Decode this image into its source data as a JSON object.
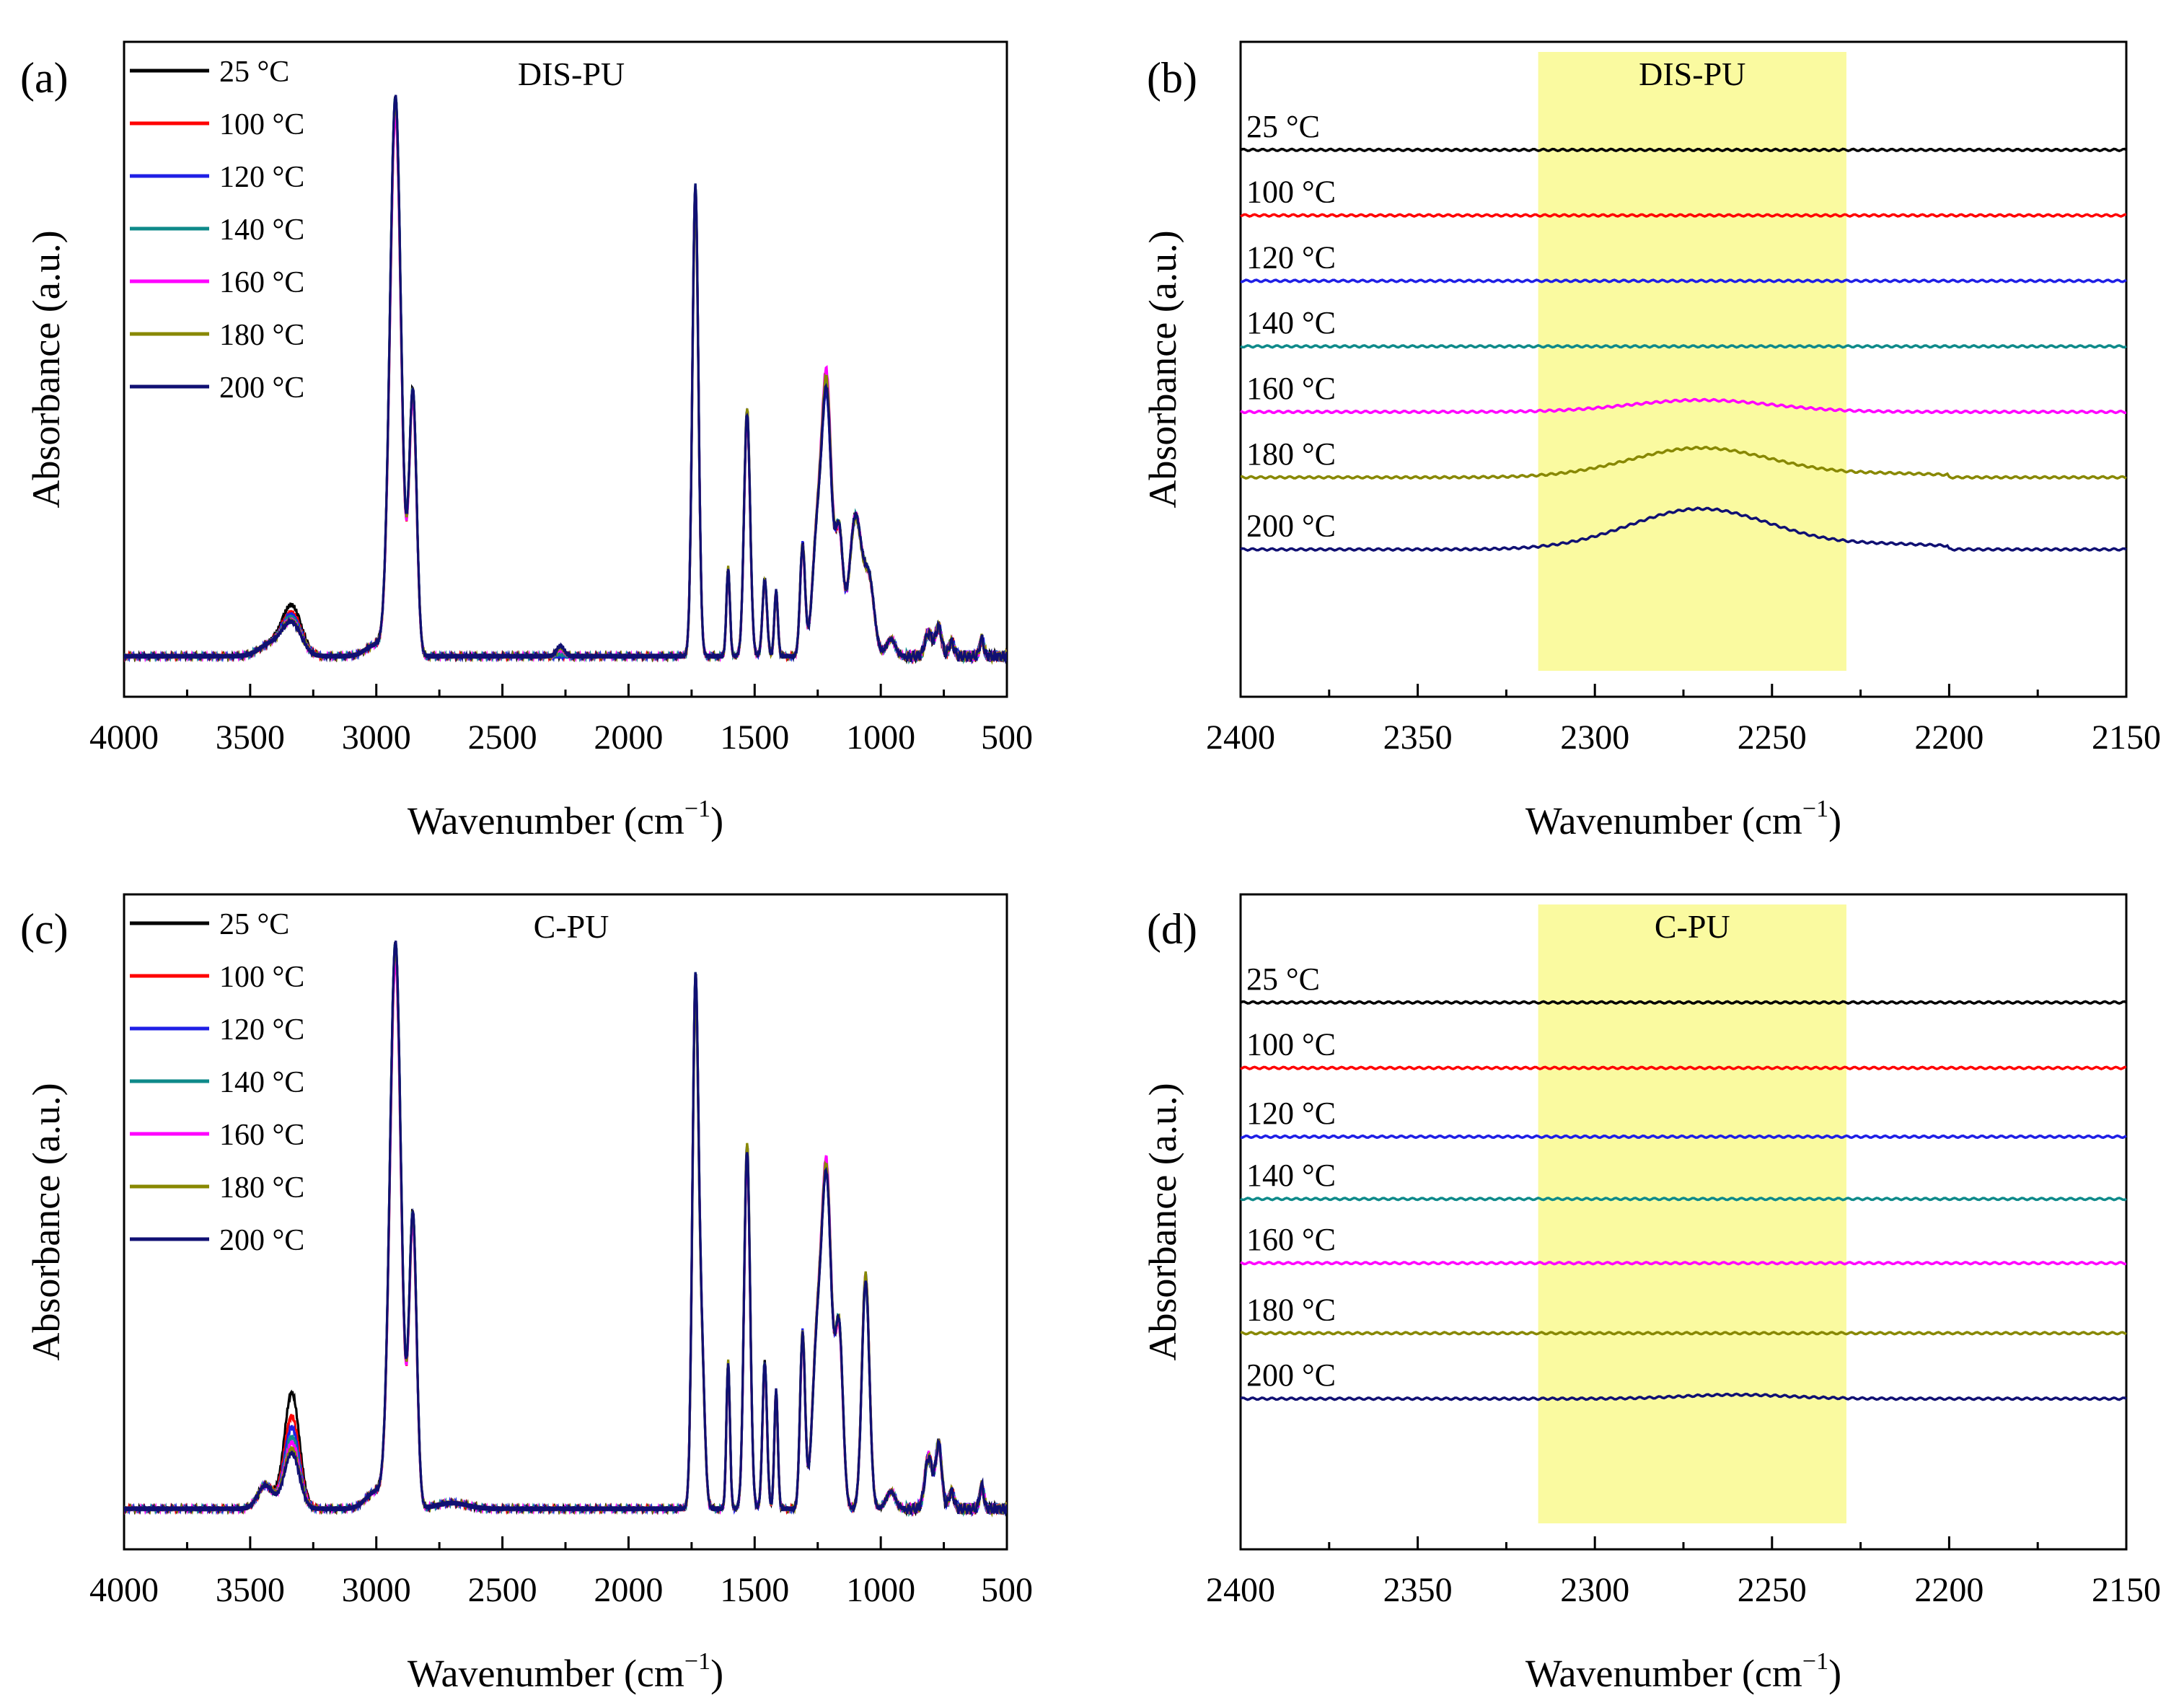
{
  "figure": {
    "units": {
      "degree": "°C",
      "superscript": "−1"
    },
    "colors": {
      "25": "#000000",
      "100": "#ff0000",
      "120": "#1f1fe6",
      "140": "#0e8a8a",
      "160": "#ff00ff",
      "180": "#888800",
      "200": "#101073",
      "highlight": "#fafaa0",
      "frame": "#000000"
    }
  },
  "chart_data": [
    {
      "panel": "(a)",
      "type": "line",
      "title": "DIS-PU",
      "xlabel": "Wavenumber (cm",
      "xlabel_sup": "−1",
      "xlabel_close": ")",
      "ylabel": "Absorbance (a.u.)",
      "xlim": [
        4000,
        500
      ],
      "ylim": [
        -0.05,
        1.08
      ],
      "xticks": [
        4000,
        3500,
        3000,
        2500,
        2000,
        1500,
        1000,
        500
      ],
      "legend": [
        "25 °C",
        "100 °C",
        "120 °C",
        "140 °C",
        "160 °C",
        "180 °C",
        "200 °C"
      ],
      "legend_position": "top-left",
      "series_temps": [
        "25",
        "100",
        "120",
        "140",
        "160",
        "180",
        "200"
      ],
      "peaks": {
        "base": 0.02,
        "list": [
          [
            3335,
            38,
            0.085
          ],
          [
            3420,
            45,
            0.02
          ],
          [
            3000,
            40,
            0.02
          ],
          [
            2924,
            22,
            0.95
          ],
          [
            2855,
            15,
            0.45
          ],
          [
            2270,
            15,
            0.015
          ],
          [
            1735,
            12,
            0.8
          ],
          [
            1605,
            7,
            0.15
          ],
          [
            1530,
            12,
            0.42
          ],
          [
            1460,
            9,
            0.13
          ],
          [
            1415,
            7,
            0.11
          ],
          [
            1310,
            10,
            0.19
          ],
          [
            1255,
            18,
            0.18
          ],
          [
            1215,
            20,
            0.44
          ],
          [
            1165,
            15,
            0.2
          ],
          [
            1100,
            25,
            0.24
          ],
          [
            1045,
            20,
            0.12
          ],
          [
            960,
            18,
            0.03
          ],
          [
            810,
            15,
            0.04
          ],
          [
            770,
            12,
            0.05
          ],
          [
            720,
            10,
            0.025
          ],
          [
            600,
            8,
            0.03
          ]
        ],
        "variation": {
          "3335": [
            1.0,
            0.85,
            0.8,
            0.75,
            0.7,
            0.68,
            0.66
          ],
          "1215": [
            1.0,
            1.03,
            1.0,
            1.05,
            1.09,
            1.06,
            1.02
          ],
          "2270": [
            0.0,
            0.0,
            0.0,
            0.3,
            0.8,
            1.0,
            1.2
          ]
        }
      }
    },
    {
      "panel": "(b)",
      "type": "line",
      "title": "DIS-PU",
      "xlabel": "Wavenumber (cm",
      "xlabel_sup": "−1",
      "xlabel_close": ")",
      "ylabel": "Absorbance (a.u.)",
      "xlim": [
        2400,
        2150
      ],
      "xticks": [
        2400,
        2350,
        2300,
        2250,
        2200,
        2150
      ],
      "highlight": [
        2316,
        2229
      ],
      "labels": [
        "25 °C",
        "100 °C",
        "120 °C",
        "140 °C",
        "160 °C",
        "180 °C",
        "200 °C"
      ],
      "series_temps": [
        "25",
        "100",
        "120",
        "140",
        "160",
        "180",
        "200"
      ],
      "baselines": [
        0.835,
        0.735,
        0.635,
        0.535,
        0.435,
        0.335,
        0.225
      ],
      "bump_center": 2270,
      "bump_width": 20,
      "bump_heights": [
        0.0,
        0.0,
        0.0,
        0.0,
        0.018,
        0.045,
        0.062
      ],
      "ylim": [
        0,
        1
      ]
    },
    {
      "panel": "(c)",
      "type": "line",
      "title": "C-PU",
      "xlabel": "Wavenumber (cm",
      "xlabel_sup": "−1",
      "xlabel_close": ")",
      "ylabel": "Absorbance (a.u.)",
      "xlim": [
        4000,
        500
      ],
      "ylim": [
        -0.05,
        1.08
      ],
      "xticks": [
        4000,
        3500,
        3000,
        2500,
        2000,
        1500,
        1000,
        500
      ],
      "legend": [
        "25 °C",
        "100 °C",
        "120 °C",
        "140 °C",
        "160 °C",
        "180 °C",
        "200 °C"
      ],
      "legend_position": "top-left",
      "series_temps": [
        "25",
        "100",
        "120",
        "140",
        "160",
        "180",
        "200"
      ],
      "peaks": {
        "base": 0.02,
        "list": [
          [
            3335,
            30,
            0.2
          ],
          [
            3440,
            30,
            0.04
          ],
          [
            3000,
            40,
            0.03
          ],
          [
            2924,
            22,
            0.96
          ],
          [
            2855,
            15,
            0.5
          ],
          [
            2700,
            60,
            0.01
          ],
          [
            1735,
            12,
            0.88
          ],
          [
            1710,
            12,
            0.25
          ],
          [
            1605,
            7,
            0.25
          ],
          [
            1530,
            12,
            0.62
          ],
          [
            1460,
            9,
            0.25
          ],
          [
            1415,
            7,
            0.2
          ],
          [
            1310,
            10,
            0.3
          ],
          [
            1255,
            18,
            0.25
          ],
          [
            1215,
            20,
            0.56
          ],
          [
            1165,
            15,
            0.3
          ],
          [
            1060,
            15,
            0.4
          ],
          [
            960,
            18,
            0.03
          ],
          [
            810,
            15,
            0.09
          ],
          [
            770,
            12,
            0.11
          ],
          [
            720,
            10,
            0.03
          ],
          [
            600,
            8,
            0.04
          ]
        ],
        "variation": {
          "3335": [
            1.0,
            0.8,
            0.7,
            0.62,
            0.57,
            0.52,
            0.48
          ],
          "1215": [
            1.0,
            1.02,
            1.0,
            1.03,
            1.04,
            1.02,
            1.0
          ]
        }
      }
    },
    {
      "panel": "(d)",
      "type": "line",
      "title": "C-PU",
      "xlabel": "Wavenumber (cm",
      "xlabel_sup": "−1",
      "xlabel_close": ")",
      "ylabel": "Absorbance (a.u.)",
      "xlim": [
        2400,
        2150
      ],
      "xticks": [
        2400,
        2350,
        2300,
        2250,
        2200,
        2150
      ],
      "highlight": [
        2316,
        2229
      ],
      "labels": [
        "25 °C",
        "100 °C",
        "120 °C",
        "140 °C",
        "160 °C",
        "180 °C",
        "200 °C"
      ],
      "series_temps": [
        "25",
        "100",
        "120",
        "140",
        "160",
        "180",
        "200"
      ],
      "baselines": [
        0.835,
        0.735,
        0.63,
        0.535,
        0.437,
        0.33,
        0.23
      ],
      "bump_center": 2260,
      "bump_width": 15,
      "bump_heights": [
        0.0,
        0.0,
        0.0,
        0.0,
        0.0,
        0.0,
        0.006
      ],
      "ylim": [
        0,
        1
      ]
    }
  ]
}
